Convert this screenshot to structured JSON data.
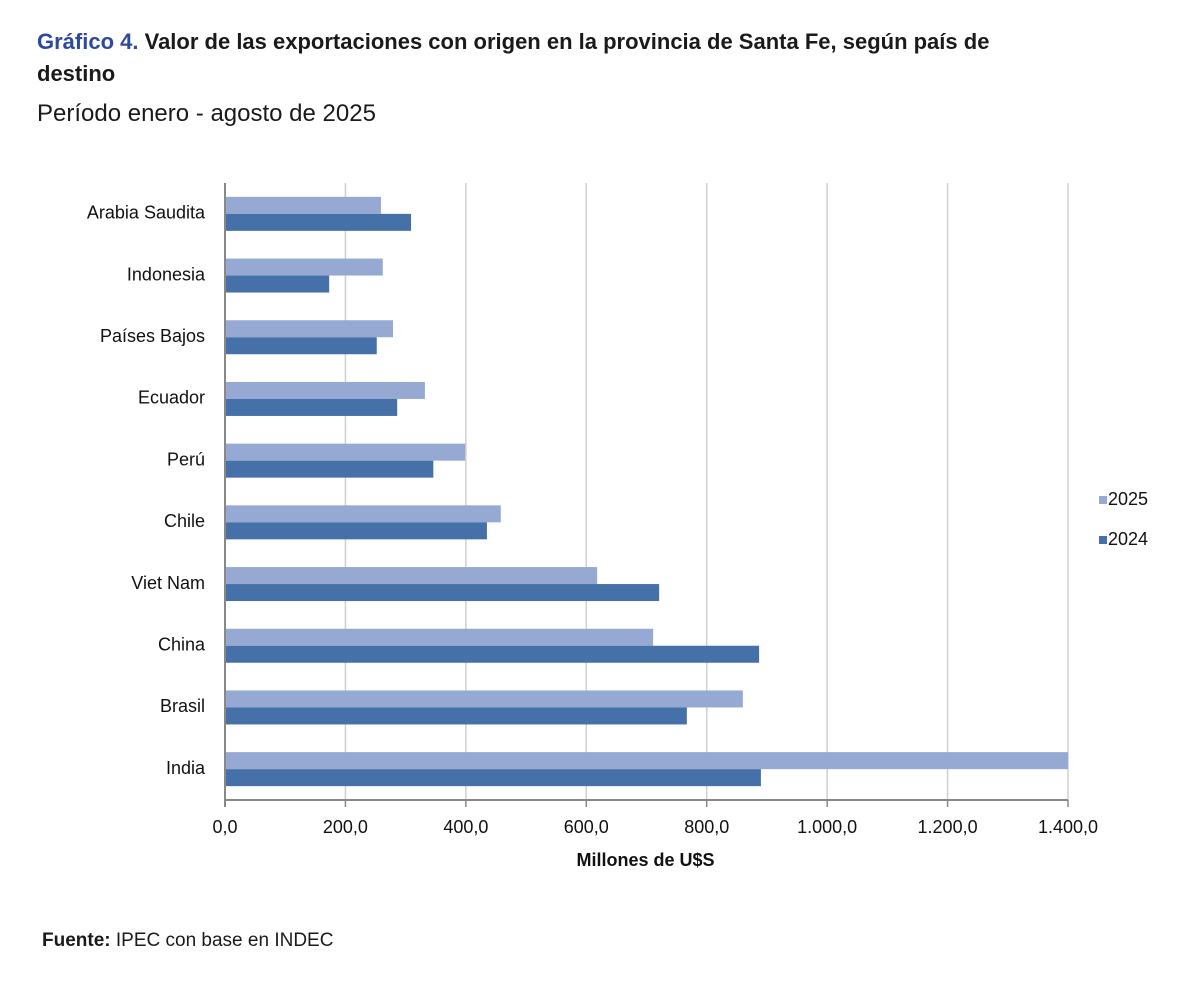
{
  "chart_data": {
    "type": "bar",
    "orientation": "horizontal",
    "title_label": "Gráfico 4.",
    "title": "Valor de las exportaciones con origen en la provincia de Santa Fe, según país de destino",
    "subtitle": "Período enero - agosto de 2025",
    "x_label": "Millones de U$S",
    "source_label": "Fuente:",
    "source": "IPEC con base en INDEC",
    "categories": [
      "Arabia Saudita",
      "Indonesia",
      "Países Bajos",
      "Ecuador",
      "Perú",
      "Chile",
      "Viet Nam",
      "China",
      "Brasil",
      "India"
    ],
    "series": [
      {
        "name": "2025",
        "color": "#95a9d3",
        "values": [
          259,
          262,
          279,
          332,
          399,
          458,
          618,
          711,
          860,
          1400
        ]
      },
      {
        "name": "2024",
        "color": "#4670a8",
        "values": [
          309,
          173,
          252,
          286,
          346,
          435,
          721,
          887,
          767,
          890
        ]
      }
    ],
    "xlim": [
      0,
      1400
    ],
    "xticks": [
      {
        "value": 0,
        "label": "0,0"
      },
      {
        "value": 200,
        "label": "200,0"
      },
      {
        "value": 400,
        "label": "400,0"
      },
      {
        "value": 600,
        "label": "600,0"
      },
      {
        "value": 800,
        "label": "800,0"
      },
      {
        "value": 1000,
        "label": "1.000,0"
      },
      {
        "value": 1200,
        "label": "1.200,0"
      },
      {
        "value": 1400,
        "label": "1.400,0"
      }
    ],
    "grid": true,
    "legend": "right"
  }
}
